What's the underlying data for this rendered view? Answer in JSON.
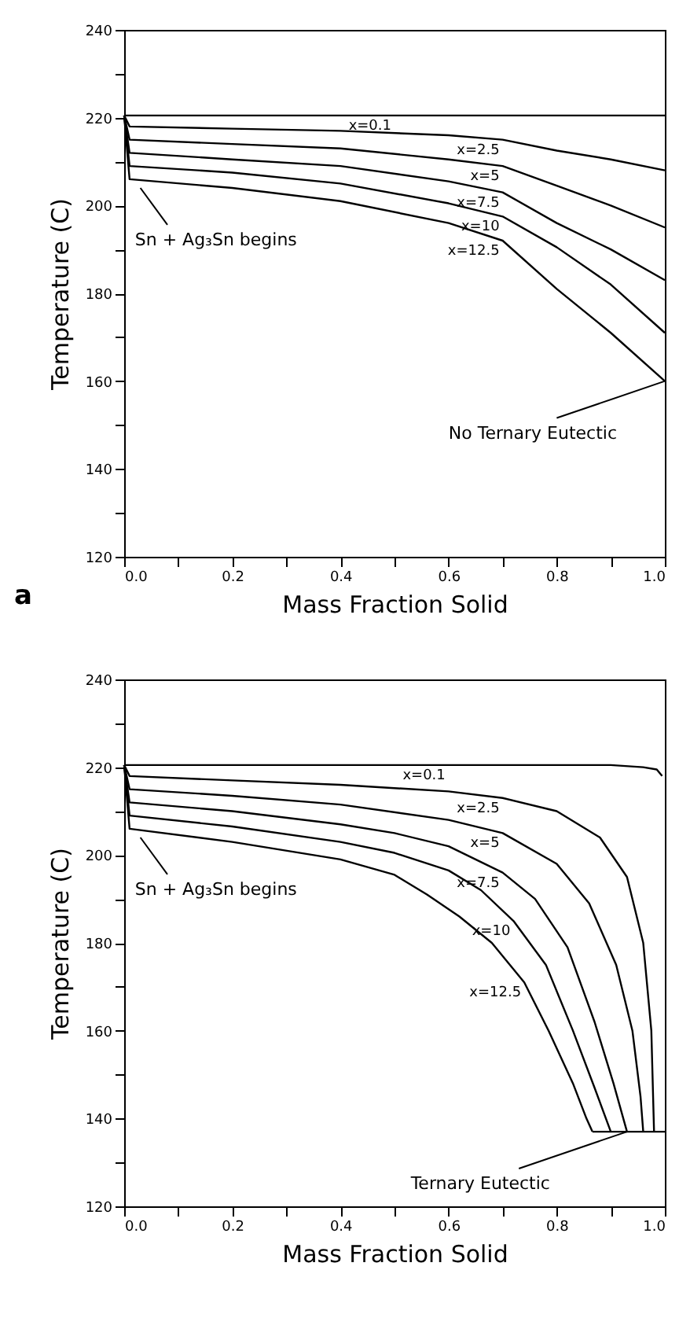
{
  "chart_data": [
    {
      "type": "line",
      "xlabel": "Mass Fraction Solid",
      "ylabel": "Temperature (C)",
      "xlim": [
        0,
        1
      ],
      "ylim": [
        120,
        240
      ],
      "xticks": [
        {
          "value": 0,
          "label": "0.0"
        },
        {
          "value": 0.1,
          "label": null
        },
        {
          "value": 0.2,
          "label": "0.2"
        },
        {
          "value": 0.3,
          "label": null
        },
        {
          "value": 0.4,
          "label": "0.4"
        },
        {
          "value": 0.5,
          "label": null
        },
        {
          "value": 0.6,
          "label": "0.6"
        },
        {
          "value": 0.7,
          "label": null
        },
        {
          "value": 0.8,
          "label": "0.8"
        },
        {
          "value": 0.9,
          "label": null
        },
        {
          "value": 1,
          "label": "1.0"
        }
      ],
      "yticks": [
        120,
        {
          "value": 130,
          "label": null
        },
        140,
        {
          "value": 150,
          "label": null
        },
        160,
        {
          "value": 170,
          "label": null
        },
        180,
        {
          "value": 190,
          "label": null
        },
        200,
        {
          "value": 210,
          "label": null
        },
        220,
        {
          "value": 230,
          "label": null
        },
        240
      ],
      "grid": false,
      "legend": false,
      "line_style": "solid",
      "marker": "none",
      "series": [
        {
          "name": "x=0.1",
          "color": "#000000",
          "x": [
            0,
            0.5,
            1
          ],
          "values": [
            220.5,
            220.5,
            220.5
          ]
        },
        {
          "name": "x=2.5",
          "color": "#000000",
          "x": [
            0,
            0.01,
            0.2,
            0.4,
            0.6,
            0.7,
            0.8,
            0.9,
            1
          ],
          "values": [
            220.5,
            218,
            217.5,
            217,
            216,
            215,
            212.5,
            210.5,
            208
          ]
        },
        {
          "name": "x=5",
          "color": "#000000",
          "x": [
            0,
            0.01,
            0.2,
            0.4,
            0.6,
            0.7,
            0.8,
            0.9,
            1
          ],
          "values": [
            220.5,
            215,
            214,
            213,
            210.5,
            209,
            204.5,
            200,
            195
          ]
        },
        {
          "name": "x=7.5",
          "color": "#000000",
          "x": [
            0,
            0.01,
            0.2,
            0.4,
            0.6,
            0.7,
            0.8,
            0.9,
            1
          ],
          "values": [
            220.5,
            212,
            210.5,
            209,
            205.5,
            203,
            196,
            190,
            183
          ]
        },
        {
          "name": "x=10",
          "color": "#000000",
          "x": [
            0,
            0.01,
            0.2,
            0.4,
            0.6,
            0.7,
            0.8,
            0.9,
            1
          ],
          "values": [
            220.5,
            209,
            207.5,
            205,
            200.5,
            197.5,
            190.5,
            182,
            171
          ]
        },
        {
          "name": "x=12.5",
          "color": "#000000",
          "x": [
            0,
            0.01,
            0.2,
            0.4,
            0.6,
            0.7,
            0.8,
            0.9,
            1
          ],
          "values": [
            220.5,
            206,
            204,
            201,
            196,
            192,
            181,
            171,
            160
          ]
        }
      ],
      "annotations": [
        {
          "text": "Sn + Ag₃Sn begins",
          "x": 0.03,
          "y": 204
        },
        {
          "text": "No Ternary Eutectic",
          "x": 1,
          "y": 160
        },
        "a"
      ]
    },
    {
      "type": "line",
      "xlabel": "Mass Fraction Solid",
      "ylabel": "Temperature (C)",
      "xlim": [
        0,
        1
      ],
      "ylim": [
        120,
        240
      ],
      "xticks": [
        {
          "value": 0,
          "label": "0.0"
        },
        {
          "value": 0.1,
          "label": null
        },
        {
          "value": 0.2,
          "label": "0.2"
        },
        {
          "value": 0.3,
          "label": null
        },
        {
          "value": 0.4,
          "label": "0.4"
        },
        {
          "value": 0.5,
          "label": null
        },
        {
          "value": 0.6,
          "label": "0.6"
        },
        {
          "value": 0.7,
          "label": null
        },
        {
          "value": 0.8,
          "label": "0.8"
        },
        {
          "value": 0.9,
          "label": null
        },
        {
          "value": 1,
          "label": "1.0"
        }
      ],
      "yticks": [
        120,
        {
          "value": 130,
          "label": null
        },
        140,
        {
          "value": 150,
          "label": null
        },
        160,
        {
          "value": 170,
          "label": null
        },
        180,
        {
          "value": 190,
          "label": null
        },
        200,
        {
          "value": 210,
          "label": null
        },
        220,
        {
          "value": 230,
          "label": null
        },
        240
      ],
      "grid": false,
      "legend": false,
      "line_style": "solid",
      "marker": "none",
      "series": [
        {
          "name": "x=0.1",
          "color": "#000000",
          "x": [
            0,
            0.6,
            0.9,
            0.96,
            0.985,
            0.995
          ],
          "values": [
            220.5,
            220.5,
            220.5,
            220,
            219.5,
            218
          ]
        },
        {
          "name": "x=2.5",
          "color": "#000000",
          "x": [
            0,
            0.01,
            0.2,
            0.4,
            0.6,
            0.7,
            0.8,
            0.88,
            0.93,
            0.96,
            0.975,
            0.98
          ],
          "values": [
            220.5,
            218,
            217,
            216,
            214.5,
            213,
            210,
            204,
            195,
            180,
            160,
            137
          ]
        },
        {
          "name": "x=5",
          "color": "#000000",
          "x": [
            0,
            0.01,
            0.2,
            0.4,
            0.6,
            0.7,
            0.8,
            0.86,
            0.91,
            0.94,
            0.955,
            0.96
          ],
          "values": [
            220.5,
            215,
            213.5,
            211.5,
            208,
            205,
            198,
            189,
            175,
            160,
            145,
            137
          ]
        },
        {
          "name": "x=7.5",
          "color": "#000000",
          "x": [
            0,
            0.01,
            0.2,
            0.4,
            0.5,
            0.6,
            0.7,
            0.76,
            0.82,
            0.87,
            0.905,
            0.93
          ],
          "values": [
            220.5,
            212,
            210,
            207,
            205,
            202,
            196,
            190,
            179,
            162,
            148,
            137
          ]
        },
        {
          "name": "x=10",
          "color": "#000000",
          "x": [
            0,
            0.01,
            0.2,
            0.4,
            0.5,
            0.6,
            0.66,
            0.72,
            0.78,
            0.83,
            0.87,
            0.9
          ],
          "values": [
            220.5,
            209,
            206.5,
            203,
            200.5,
            196.5,
            192,
            185,
            175,
            160,
            147,
            137
          ]
        },
        {
          "name": "x=12.5",
          "color": "#000000",
          "x": [
            0,
            0.01,
            0.2,
            0.4,
            0.5,
            0.56,
            0.62,
            0.68,
            0.74,
            0.785,
            0.83,
            0.855,
            0.866
          ],
          "values": [
            220.5,
            206,
            203,
            199,
            195.5,
            191,
            186,
            180,
            171,
            160,
            148,
            140,
            137
          ]
        },
        {
          "color": "#000000",
          "x": [
            0.866,
            1
          ],
          "values": [
            137,
            137
          ]
        }
      ],
      "annotations": [
        {
          "text": "Sn + Ag₃Sn begins",
          "x": 0.03,
          "y": 204
        },
        {
          "text": "Ternary Eutectic",
          "x": 0.93,
          "y": 137
        }
      ]
    }
  ]
}
